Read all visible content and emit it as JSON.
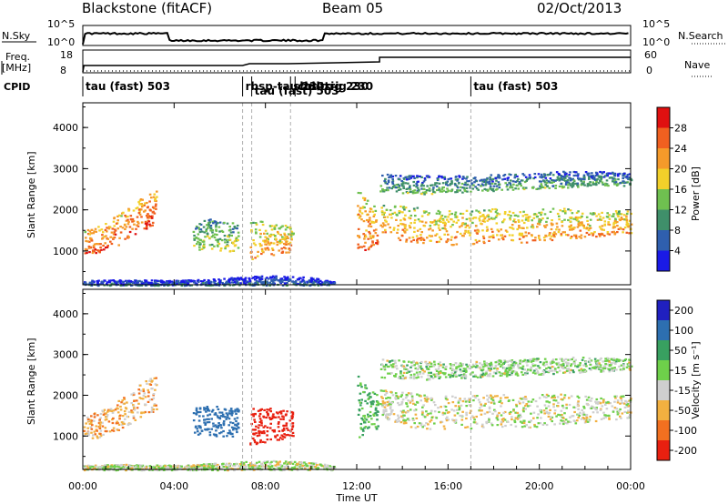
{
  "header": {
    "site": "Blackstone (fitACF)",
    "beam": "Beam 05",
    "date": "02/Oct/2013"
  },
  "strip_labels": {
    "nsky": "N.Sky",
    "nsearch": "N.Search",
    "freq": "Freq.",
    "freq_unit": "[MHz]",
    "nave": "Nave",
    "cpid": "CPID"
  },
  "strip_ticks": {
    "nsky_top": "10^5",
    "nsky_bottom": "10^0",
    "nsearch_top": "10^5",
    "nsearch_bottom": "10^0",
    "freq_top": "18",
    "freq_bottom": "8",
    "nave_top": "60",
    "nave_bottom": "0"
  },
  "cpid_segments": [
    {
      "label": "tau (fast) 503",
      "start": 0.0
    },
    {
      "label": "rbsp-tau 230",
      "start": 7.0
    },
    {
      "label": "tau (fast) 503",
      "start": 7.4
    },
    {
      "label": "sbd-trig 230",
      "start": 9.1
    },
    {
      "label": "cbd-trig 230",
      "start": 9.3
    },
    {
      "label": "tau (fast) 503",
      "start": 17.0
    }
  ],
  "axes": {
    "xlabel": "Time UT",
    "ylabel": "Slant Range [km]",
    "x_ticks": [
      "00:00",
      "04:00",
      "08:00",
      "12:00",
      "16:00",
      "20:00",
      "00:00"
    ],
    "y_ticks": [
      "1000",
      "2000",
      "3000",
      "4000"
    ]
  },
  "colorbars": {
    "power": {
      "label": "Power [dB]",
      "ticks": [
        "4",
        "8",
        "12",
        "16",
        "20",
        "24",
        "28"
      ],
      "colors": [
        "#1a1ae6",
        "#2f5fae",
        "#3f8f6a",
        "#6fc050",
        "#f2d02a",
        "#f59a2a",
        "#f06020",
        "#e01010"
      ]
    },
    "velocity": {
      "label": "Velocity [m s⁻¹]",
      "ticks": [
        "200",
        "100",
        "50",
        "15",
        "-15",
        "-50",
        "-100",
        "-200"
      ],
      "colors": [
        "#2020c0",
        "#2d6fb0",
        "#38a060",
        "#6ed04a",
        "#cfcfcf",
        "#f2b040",
        "#f27020",
        "#e82010"
      ]
    }
  },
  "chart_data": {
    "type": "heatmap",
    "title": "Blackstone (fitACF)",
    "xlabel": "Time UT",
    "ylabel": "Slant Range [km]",
    "xlim": [
      0,
      24
    ],
    "ylim": [
      180,
      4600
    ],
    "scatter_bands": [
      {
        "t": [
          0.0,
          0.5,
          1.0,
          1.5,
          2.0,
          2.5,
          3.0,
          3.2
        ],
        "r_low": [
          950,
          950,
          1050,
          1150,
          1300,
          1450,
          1600,
          1650
        ],
        "r_high": [
          1500,
          1600,
          1700,
          1900,
          2100,
          2300,
          2450,
          2500
        ],
        "power_db": 24,
        "velocity": -30
      },
      {
        "t": [
          4.8,
          5.5,
          6.0,
          6.5,
          6.8
        ],
        "r_low": [
          1050,
          1050,
          1000,
          1000,
          1050
        ],
        "r_high": [
          1700,
          1800,
          1750,
          1700,
          1750
        ],
        "power_db": 14,
        "velocity": 140
      },
      {
        "t": [
          7.3,
          7.8,
          8.3,
          8.8,
          9.2
        ],
        "r_low": [
          800,
          850,
          900,
          950,
          1000
        ],
        "r_high": [
          1700,
          1750,
          1700,
          1650,
          1600
        ],
        "power_db": 20,
        "velocity": -160
      },
      {
        "t": [
          12.0,
          12.4,
          12.9
        ],
        "r_low": [
          950,
          1050,
          1150
        ],
        "r_high": [
          2500,
          2300,
          2100
        ],
        "power_db": 22,
        "velocity": 60
      },
      {
        "t": [
          13.0,
          14.0,
          15.0,
          16.0,
          17.0,
          18.0,
          19.0,
          20.0,
          21.0,
          22.0,
          23.0,
          24.0
        ],
        "r_low": [
          1500,
          1250,
          1200,
          1150,
          1180,
          1250,
          1200,
          1250,
          1300,
          1350,
          1400,
          1450
        ],
        "r_high": [
          2150,
          2100,
          2050,
          2000,
          2000,
          2050,
          2000,
          2050,
          2050,
          2000,
          2000,
          2000
        ],
        "power_db": 20,
        "velocity": 0
      },
      {
        "t": [
          13.0,
          15.0,
          17.0,
          19.0,
          21.0,
          22.5,
          24.0
        ],
        "r_low": [
          2450,
          2400,
          2450,
          2500,
          2550,
          2600,
          2600
        ],
        "r_high": [
          2900,
          2850,
          2850,
          2900,
          2950,
          2950,
          2900
        ],
        "power_db": 10,
        "velocity": 20
      },
      {
        "t": [
          0.0,
          2.0,
          4.0,
          6.0,
          8.0,
          10.0,
          11.0
        ],
        "r_low": [
          180,
          180,
          180,
          180,
          180,
          180,
          180
        ],
        "r_high": [
          300,
          320,
          300,
          350,
          420,
          380,
          280
        ],
        "power_db": 6,
        "velocity": 10
      }
    ],
    "power_scale": {
      "min": 0,
      "max": 30,
      "unit": "dB"
    },
    "velocity_scale": {
      "min": -200,
      "max": 200,
      "unit": "m s-1"
    }
  }
}
